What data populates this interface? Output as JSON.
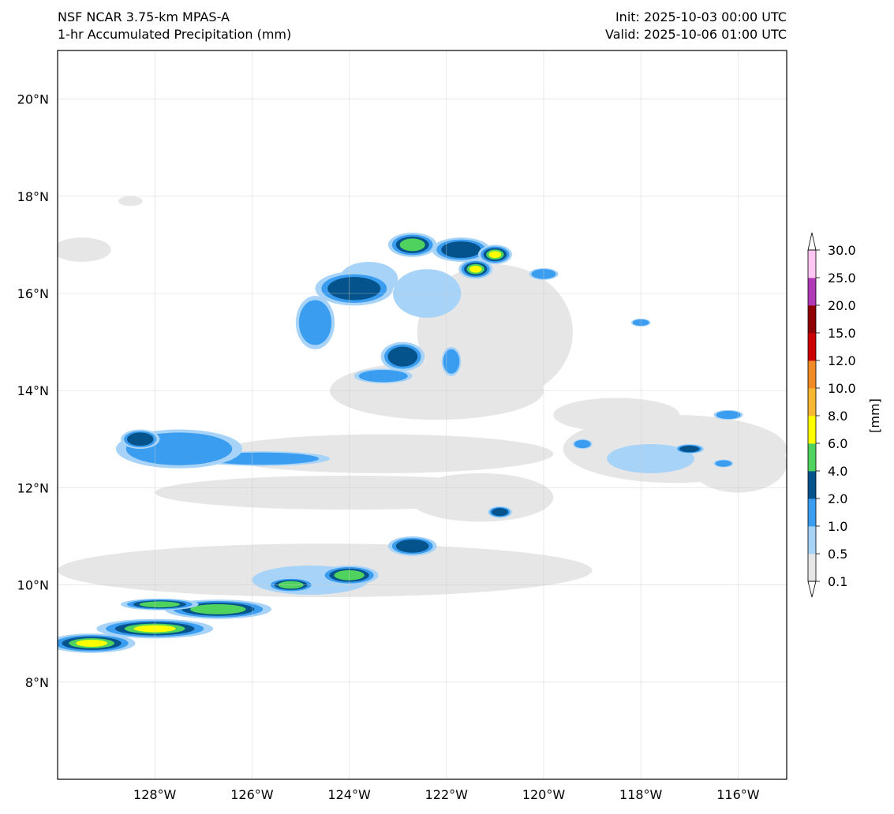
{
  "title": {
    "model": "NSF NCAR 3.75-km MPAS-A",
    "field": "1-hr Accumulated Precipitation (mm)",
    "init": "Init: 2025-10-03 00:00 UTC",
    "valid": "Valid: 2025-10-06 01:00 UTC"
  },
  "map": {
    "lon_range": [
      -130,
      -115
    ],
    "lat_range": [
      6,
      21
    ],
    "lon_ticks": [
      {
        "value": -128,
        "label": "128°W"
      },
      {
        "value": -126,
        "label": "126°W"
      },
      {
        "value": -124,
        "label": "124°W"
      },
      {
        "value": -122,
        "label": "122°W"
      },
      {
        "value": -120,
        "label": "120°W"
      },
      {
        "value": -118,
        "label": "118°W"
      },
      {
        "value": -116,
        "label": "116°W"
      }
    ],
    "lat_ticks": [
      {
        "value": 8,
        "label": "8°N"
      },
      {
        "value": 10,
        "label": "10°N"
      },
      {
        "value": 12,
        "label": "12°N"
      },
      {
        "value": 14,
        "label": "14°N"
      },
      {
        "value": 16,
        "label": "16°N"
      },
      {
        "value": 18,
        "label": "18°N"
      },
      {
        "value": 20,
        "label": "20°N"
      }
    ],
    "gridlines": true
  },
  "colorbar": {
    "unit_label": "[mm]",
    "levels": [
      "0.1",
      "0.5",
      "1.0",
      "2.0",
      "4.0",
      "6.0",
      "8.0",
      "10.0",
      "12.0",
      "15.0",
      "20.0",
      "25.0",
      "30.0"
    ],
    "colors": [
      "#e6e6e6",
      "#a6d3f7",
      "#3a9df0",
      "#04538c",
      "#4fd25e",
      "#ffff00",
      "#f7b733",
      "#f08a24",
      "#cc0000",
      "#8f0000",
      "#b03ab6",
      "#ffc6f4"
    ],
    "extend": "both"
  },
  "precip_features": {
    "light": [
      {
        "lon": -121.0,
        "lat": 15.2,
        "rx": 1.6,
        "ry": 1.4
      },
      {
        "lon": -122.2,
        "lat": 14.0,
        "rx": 2.2,
        "ry": 0.6
      },
      {
        "lon": -123.3,
        "lat": 12.7,
        "rx": 3.5,
        "ry": 0.4
      },
      {
        "lon": -124.0,
        "lat": 11.9,
        "rx": 4.0,
        "ry": 0.35
      },
      {
        "lon": -121.3,
        "lat": 11.8,
        "rx": 1.5,
        "ry": 0.5
      },
      {
        "lon": -117.3,
        "lat": 12.8,
        "rx": 2.3,
        "ry": 0.7
      },
      {
        "lon": -116.0,
        "lat": 12.5,
        "rx": 1.0,
        "ry": 0.6
      },
      {
        "lon": -124.5,
        "lat": 10.3,
        "rx": 5.5,
        "ry": 0.55
      },
      {
        "lon": -129.5,
        "lat": 16.9,
        "rx": 0.6,
        "ry": 0.25
      },
      {
        "lon": -128.5,
        "lat": 17.9,
        "rx": 0.25,
        "ry": 0.1
      },
      {
        "lon": -118.5,
        "lat": 13.5,
        "rx": 1.3,
        "ry": 0.35
      }
    ],
    "light_blue": [
      {
        "lon": -122.4,
        "lat": 16.0,
        "rx": 0.7,
        "ry": 0.5
      },
      {
        "lon": -123.6,
        "lat": 16.3,
        "rx": 0.6,
        "ry": 0.35
      },
      {
        "lon": -117.8,
        "lat": 12.6,
        "rx": 0.9,
        "ry": 0.3
      },
      {
        "lon": -124.8,
        "lat": 10.1,
        "rx": 1.2,
        "ry": 0.3
      }
    ],
    "rainbands": [
      {
        "lon": -123.9,
        "lat": 16.1,
        "rx": 0.8,
        "ry": 0.35,
        "level": 4
      },
      {
        "lon": -122.7,
        "lat": 17.0,
        "rx": 0.5,
        "ry": 0.25,
        "level": 5
      },
      {
        "lon": -121.7,
        "lat": 16.9,
        "rx": 0.6,
        "ry": 0.25,
        "level": 4
      },
      {
        "lon": -121.0,
        "lat": 16.8,
        "rx": 0.35,
        "ry": 0.2,
        "level": 6
      },
      {
        "lon": -121.4,
        "lat": 16.5,
        "rx": 0.35,
        "ry": 0.2,
        "level": 6
      },
      {
        "lon": -122.9,
        "lat": 14.7,
        "rx": 0.45,
        "ry": 0.3,
        "level": 4
      },
      {
        "lon": -123.3,
        "lat": 14.3,
        "rx": 0.6,
        "ry": 0.15,
        "level": 3
      },
      {
        "lon": -124.7,
        "lat": 15.4,
        "rx": 0.4,
        "ry": 0.55,
        "level": 3
      },
      {
        "lon": -121.9,
        "lat": 14.6,
        "rx": 0.2,
        "ry": 0.3,
        "level": 3
      },
      {
        "lon": -120.0,
        "lat": 16.4,
        "rx": 0.3,
        "ry": 0.12,
        "level": 3
      },
      {
        "lon": -125.8,
        "lat": 12.6,
        "rx": 1.4,
        "ry": 0.15,
        "level": 3
      },
      {
        "lon": -127.5,
        "lat": 12.8,
        "rx": 1.3,
        "ry": 0.4,
        "level": 3
      },
      {
        "lon": -128.3,
        "lat": 13.0,
        "rx": 0.4,
        "ry": 0.2,
        "level": 4
      },
      {
        "lon": -122.7,
        "lat": 10.8,
        "rx": 0.5,
        "ry": 0.2,
        "level": 4
      },
      {
        "lon": -124.0,
        "lat": 10.2,
        "rx": 0.6,
        "ry": 0.2,
        "level": 5
      },
      {
        "lon": -125.2,
        "lat": 10.0,
        "rx": 0.5,
        "ry": 0.15,
        "level": 5
      },
      {
        "lon": -120.9,
        "lat": 11.5,
        "rx": 0.25,
        "ry": 0.12,
        "level": 4
      },
      {
        "lon": -129.3,
        "lat": 8.8,
        "rx": 0.9,
        "ry": 0.2,
        "level": 6
      },
      {
        "lon": -128.0,
        "lat": 9.1,
        "rx": 1.2,
        "ry": 0.2,
        "level": 6
      },
      {
        "lon": -126.7,
        "lat": 9.5,
        "rx": 1.1,
        "ry": 0.2,
        "level": 5
      },
      {
        "lon": -127.9,
        "lat": 9.6,
        "rx": 0.8,
        "ry": 0.12,
        "level": 5
      },
      {
        "lon": -117.0,
        "lat": 12.8,
        "rx": 0.3,
        "ry": 0.1,
        "level": 4
      },
      {
        "lon": -116.2,
        "lat": 13.5,
        "rx": 0.3,
        "ry": 0.1,
        "level": 3
      },
      {
        "lon": -118.0,
        "lat": 15.4,
        "rx": 0.2,
        "ry": 0.08,
        "level": 3
      },
      {
        "lon": -119.2,
        "lat": 12.9,
        "rx": 0.2,
        "ry": 0.1,
        "level": 3
      },
      {
        "lon": -116.3,
        "lat": 12.5,
        "rx": 0.2,
        "ry": 0.08,
        "level": 3
      }
    ]
  }
}
